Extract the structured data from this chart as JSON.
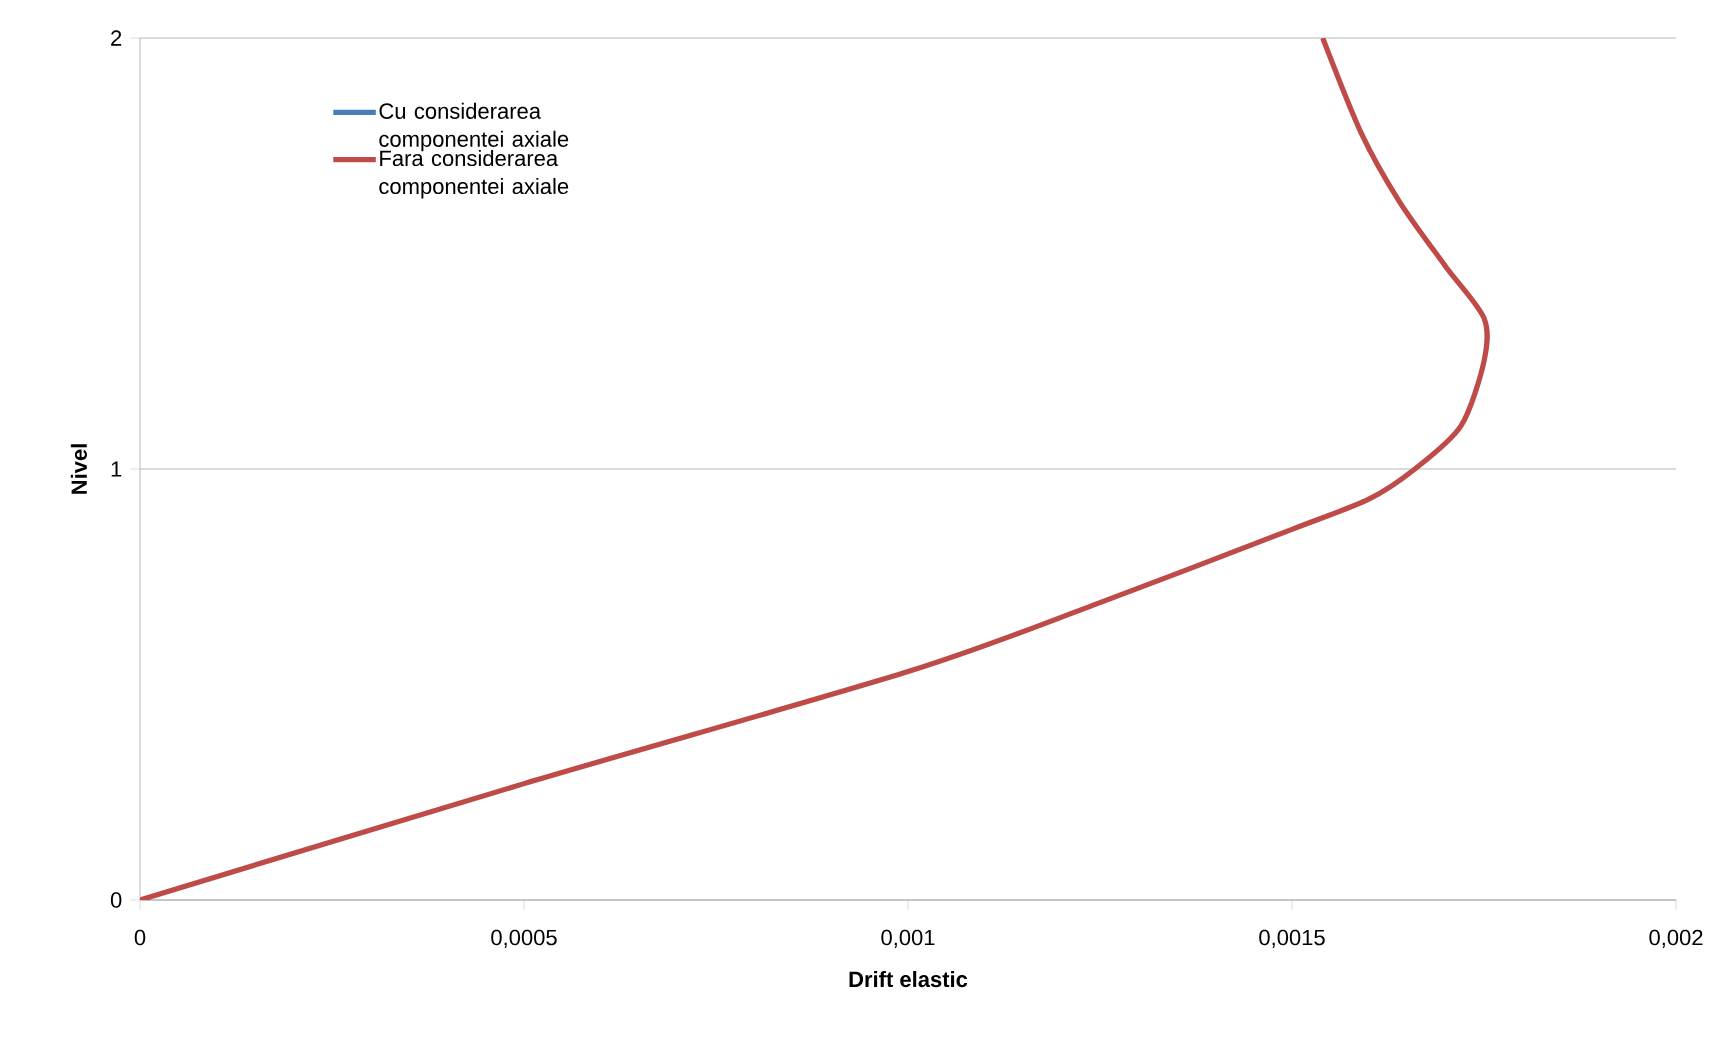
{
  "chart_data": {
    "type": "line",
    "xlabel": "Drift elastic",
    "ylabel": "Nivel",
    "xlim": [
      0,
      0.002
    ],
    "ylim": [
      0,
      2
    ],
    "xticks": [
      0,
      {
        "value": 0.0005,
        "label": "0,0005"
      },
      {
        "value": 0.001,
        "label": "0,001"
      },
      {
        "value": 0.0015,
        "label": "0,0015"
      },
      {
        "value": 0.002,
        "label": "0,002"
      }
    ],
    "yticks": [
      0,
      1,
      2
    ],
    "grid": "y",
    "legend": "top left",
    "series": [
      {
        "name": "Cu considerarea componentei axiale",
        "color": "#4a7ebb",
        "values": [
          null,
          null,
          null,
          null,
          null,
          null,
          null,
          null,
          null,
          null,
          null,
          null,
          null,
          null
        ]
      },
      {
        "name": "Fara considerarea componentei axiale",
        "color": "#be4b48",
        "x": [
          0,
          0.0005,
          0.001,
          0.00125,
          0.0015,
          0.0016,
          0.00166,
          0.00172,
          0.00175,
          0.00175,
          0.0017,
          0.00164,
          0.00159,
          0.00154
        ],
        "values": [
          0,
          0.27,
          0.53,
          0.69,
          0.86,
          0.93,
          1.0,
          1.1,
          1.25,
          1.35,
          1.47,
          1.62,
          1.78,
          2.0
        ]
      }
    ]
  }
}
